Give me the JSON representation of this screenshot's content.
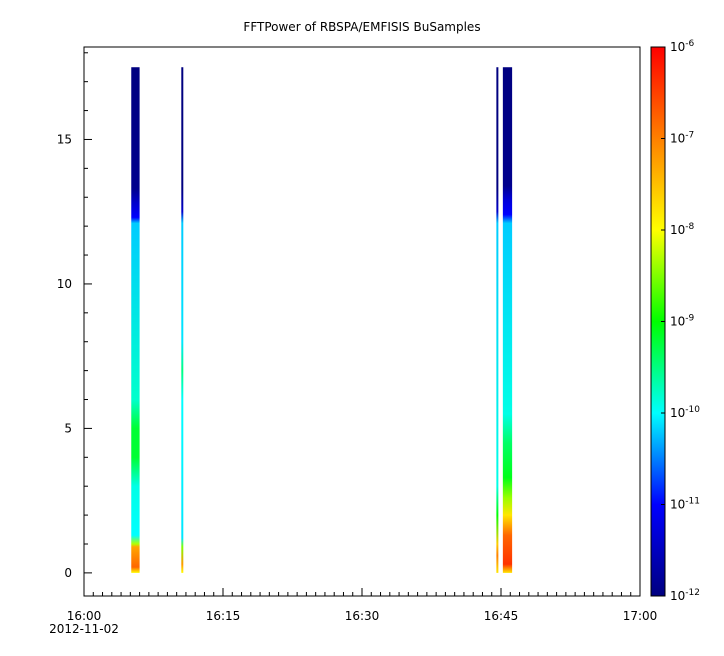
{
  "chart_data": {
    "type": "heatmap",
    "title": "FFTPower of RBSPA/EMFISIS  BuSamples",
    "xlabel": "",
    "ylabel": "",
    "x_ticks": [
      {
        "value": 0,
        "label": "16:00",
        "sublabel": "2012-11-02"
      },
      {
        "value": 15,
        "label": "16:15"
      },
      {
        "value": 30,
        "label": "16:30"
      },
      {
        "value": 45,
        "label": "16:45"
      },
      {
        "value": 60,
        "label": "17:00"
      }
    ],
    "x_range_minutes": [
      0,
      60
    ],
    "y_ticks": [
      0,
      5,
      10,
      15
    ],
    "ylim": [
      -0.8,
      18.2
    ],
    "colorbar": {
      "scale": "log",
      "range": [
        1e-12,
        1e-06
      ],
      "ticks": [
        {
          "base": "10",
          "exp": "-12",
          "value": 1e-12
        },
        {
          "base": "10",
          "exp": "-11",
          "value": 1e-11
        },
        {
          "base": "10",
          "exp": "-10",
          "value": 1e-10
        },
        {
          "base": "10",
          "exp": "-9",
          "value": 1e-09
        },
        {
          "base": "10",
          "exp": "-8",
          "value": 1e-08
        },
        {
          "base": "10",
          "exp": "-7",
          "value": 1e-07
        },
        {
          "base": "10",
          "exp": "-6",
          "value": 1e-06
        }
      ],
      "colormap": [
        "#000080",
        "#0000ff",
        "#00ffff",
        "#00ff00",
        "#ffff00",
        "#ff8000",
        "#ff0000"
      ]
    },
    "columns": [
      {
        "x_start_min": 5.1,
        "x_end_min": 6.0,
        "profile": [
          {
            "y": 0.0,
            "log10": -8.0
          },
          {
            "y": 0.2,
            "log10": -6.8
          },
          {
            "y": 0.9,
            "log10": -7.3
          },
          {
            "y": 1.0,
            "log10": -8.3
          },
          {
            "y": 1.3,
            "log10": -10.0
          },
          {
            "y": 3.0,
            "log10": -9.9
          },
          {
            "y": 4.0,
            "log10": -9.2
          },
          {
            "y": 5.0,
            "log10": -9.2
          },
          {
            "y": 6.0,
            "log10": -9.8
          },
          {
            "y": 12.1,
            "log10": -10.2
          },
          {
            "y": 12.3,
            "log10": -11.0
          },
          {
            "y": 12.8,
            "log10": -11.4
          },
          {
            "y": 13.3,
            "log10": -11.9
          },
          {
            "y": 17.5,
            "log10": -12.0
          }
        ]
      },
      {
        "x_start_min": 10.5,
        "x_end_min": 10.7,
        "profile": [
          {
            "y": 0.0,
            "log10": -8.0
          },
          {
            "y": 0.3,
            "log10": -7.2
          },
          {
            "y": 0.9,
            "log10": -8.5
          },
          {
            "y": 1.2,
            "log10": -10.1
          },
          {
            "y": 6.0,
            "log10": -10.0
          },
          {
            "y": 7.0,
            "log10": -9.5
          },
          {
            "y": 8.0,
            "log10": -10.1
          },
          {
            "y": 12.1,
            "log10": -10.2
          },
          {
            "y": 12.5,
            "log10": -11.4
          },
          {
            "y": 13.3,
            "log10": -12.0
          },
          {
            "y": 17.5,
            "log10": -12.0
          }
        ]
      },
      {
        "x_start_min": 44.5,
        "x_end_min": 44.7,
        "profile": [
          {
            "y": 0.0,
            "log10": -7.8
          },
          {
            "y": 0.6,
            "log10": -7.0
          },
          {
            "y": 1.0,
            "log10": -7.6
          },
          {
            "y": 2.0,
            "log10": -9.0
          },
          {
            "y": 3.0,
            "log10": -9.9
          },
          {
            "y": 12.1,
            "log10": -10.2
          },
          {
            "y": 12.5,
            "log10": -11.4
          },
          {
            "y": 13.3,
            "log10": -12.0
          },
          {
            "y": 17.5,
            "log10": -12.0
          }
        ]
      },
      {
        "x_start_min": 45.2,
        "x_end_min": 46.2,
        "profile": [
          {
            "y": 0.0,
            "log10": -7.8
          },
          {
            "y": 0.3,
            "log10": -6.4
          },
          {
            "y": 1.3,
            "log10": -6.8
          },
          {
            "y": 2.0,
            "log10": -7.8
          },
          {
            "y": 2.6,
            "log10": -8.4
          },
          {
            "y": 3.3,
            "log10": -9.1
          },
          {
            "y": 4.5,
            "log10": -9.4
          },
          {
            "y": 5.5,
            "log10": -9.9
          },
          {
            "y": 12.1,
            "log10": -10.2
          },
          {
            "y": 12.4,
            "log10": -11.0
          },
          {
            "y": 12.9,
            "log10": -11.3
          },
          {
            "y": 13.4,
            "log10": -11.9
          },
          {
            "y": 17.5,
            "log10": -12.0
          }
        ]
      }
    ]
  }
}
